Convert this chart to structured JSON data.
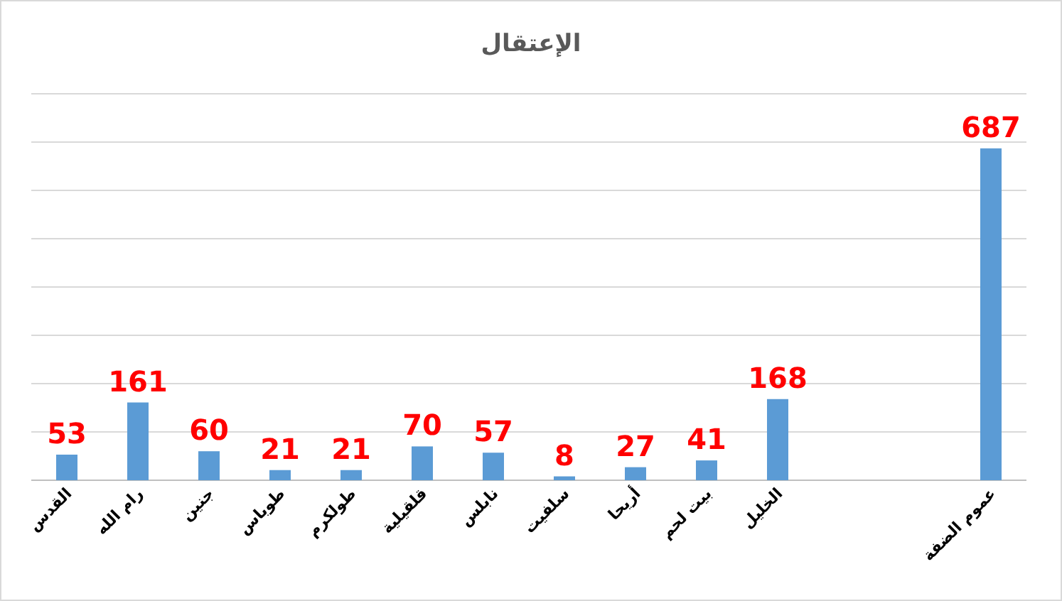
{
  "chart_data": {
    "type": "bar",
    "title": "الإعتقال",
    "categories": [
      "القدس",
      "رام الله",
      "جنين",
      "طوباس",
      "طولكرم",
      "قلقيلية",
      "نابلس",
      "سلفيت",
      "أريحا",
      "بيت لحم",
      "الخليل",
      null,
      null,
      "عموم الضفة"
    ],
    "values": [
      53,
      161,
      60,
      21,
      21,
      70,
      57,
      8,
      27,
      41,
      168,
      null,
      null,
      687
    ],
    "color": "#5b9bd5",
    "data_labels": true,
    "ylim": [
      0,
      800
    ],
    "yticks": [
      {
        "value": 0,
        "label": null
      },
      {
        "value": 100,
        "label": null
      },
      {
        "value": 200,
        "label": null
      },
      {
        "value": 300,
        "label": null
      },
      {
        "value": 400,
        "label": null
      },
      {
        "value": 500,
        "label": null
      },
      {
        "value": 600,
        "label": null
      },
      {
        "value": 700,
        "label": null
      },
      {
        "value": 800,
        "label": null
      }
    ],
    "tick_labels": "x",
    "grid": "y"
  }
}
